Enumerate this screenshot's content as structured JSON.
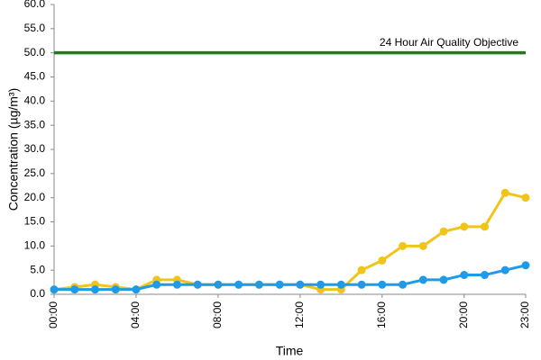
{
  "chart_data": {
    "type": "line",
    "x_label": "Time",
    "y_label": "Concentration (µg/m³)",
    "categories": [
      "00:00",
      null,
      null,
      null,
      "04:00",
      null,
      null,
      null,
      "08:00",
      null,
      null,
      null,
      "12:00",
      null,
      null,
      null,
      "16:00",
      null,
      null,
      null,
      "20:00",
      null,
      null,
      "23:00"
    ],
    "series": [
      {
        "color": "#f0c419",
        "values": [
          1.0,
          1.5,
          2.0,
          1.5,
          1.0,
          3.0,
          3.0,
          2.0,
          2.0,
          2.0,
          2.0,
          2.0,
          2.0,
          1.0,
          1.0,
          5.0,
          7.0,
          10.0,
          10.0,
          13.0,
          14.0,
          14.0,
          21.0,
          20.0
        ]
      },
      {
        "color": "#1e9be8",
        "values": [
          1.0,
          1.0,
          1.0,
          1.0,
          1.0,
          2.0,
          2.0,
          2.0,
          2.0,
          2.0,
          2.0,
          2.0,
          2.0,
          2.0,
          2.0,
          2.0,
          2.0,
          2.0,
          3.0,
          3.0,
          4.0,
          4.0,
          5.0,
          6.0
        ]
      }
    ],
    "objective": {
      "value": 50,
      "label": "24 Hour Air Quality Objective",
      "color": "#1f7a1f"
    },
    "ylim": [
      0,
      60
    ],
    "yticks": [
      {
        "value": 0,
        "label": "0.0"
      },
      {
        "value": 5,
        "label": "5.0"
      },
      {
        "value": 10,
        "label": "10.0"
      },
      {
        "value": 15,
        "label": "15.0"
      },
      {
        "value": 20,
        "label": "20.0"
      },
      {
        "value": 25,
        "label": "25.0"
      },
      {
        "value": 30,
        "label": "30.0"
      },
      {
        "value": 35,
        "label": "35.0"
      },
      {
        "value": 40,
        "label": "40.0"
      },
      {
        "value": 45,
        "label": "45.0"
      },
      {
        "value": 50,
        "label": "50.0"
      },
      {
        "value": 55,
        "label": "55.0"
      },
      {
        "value": 60,
        "label": "60.0"
      }
    ],
    "grid": false
  }
}
